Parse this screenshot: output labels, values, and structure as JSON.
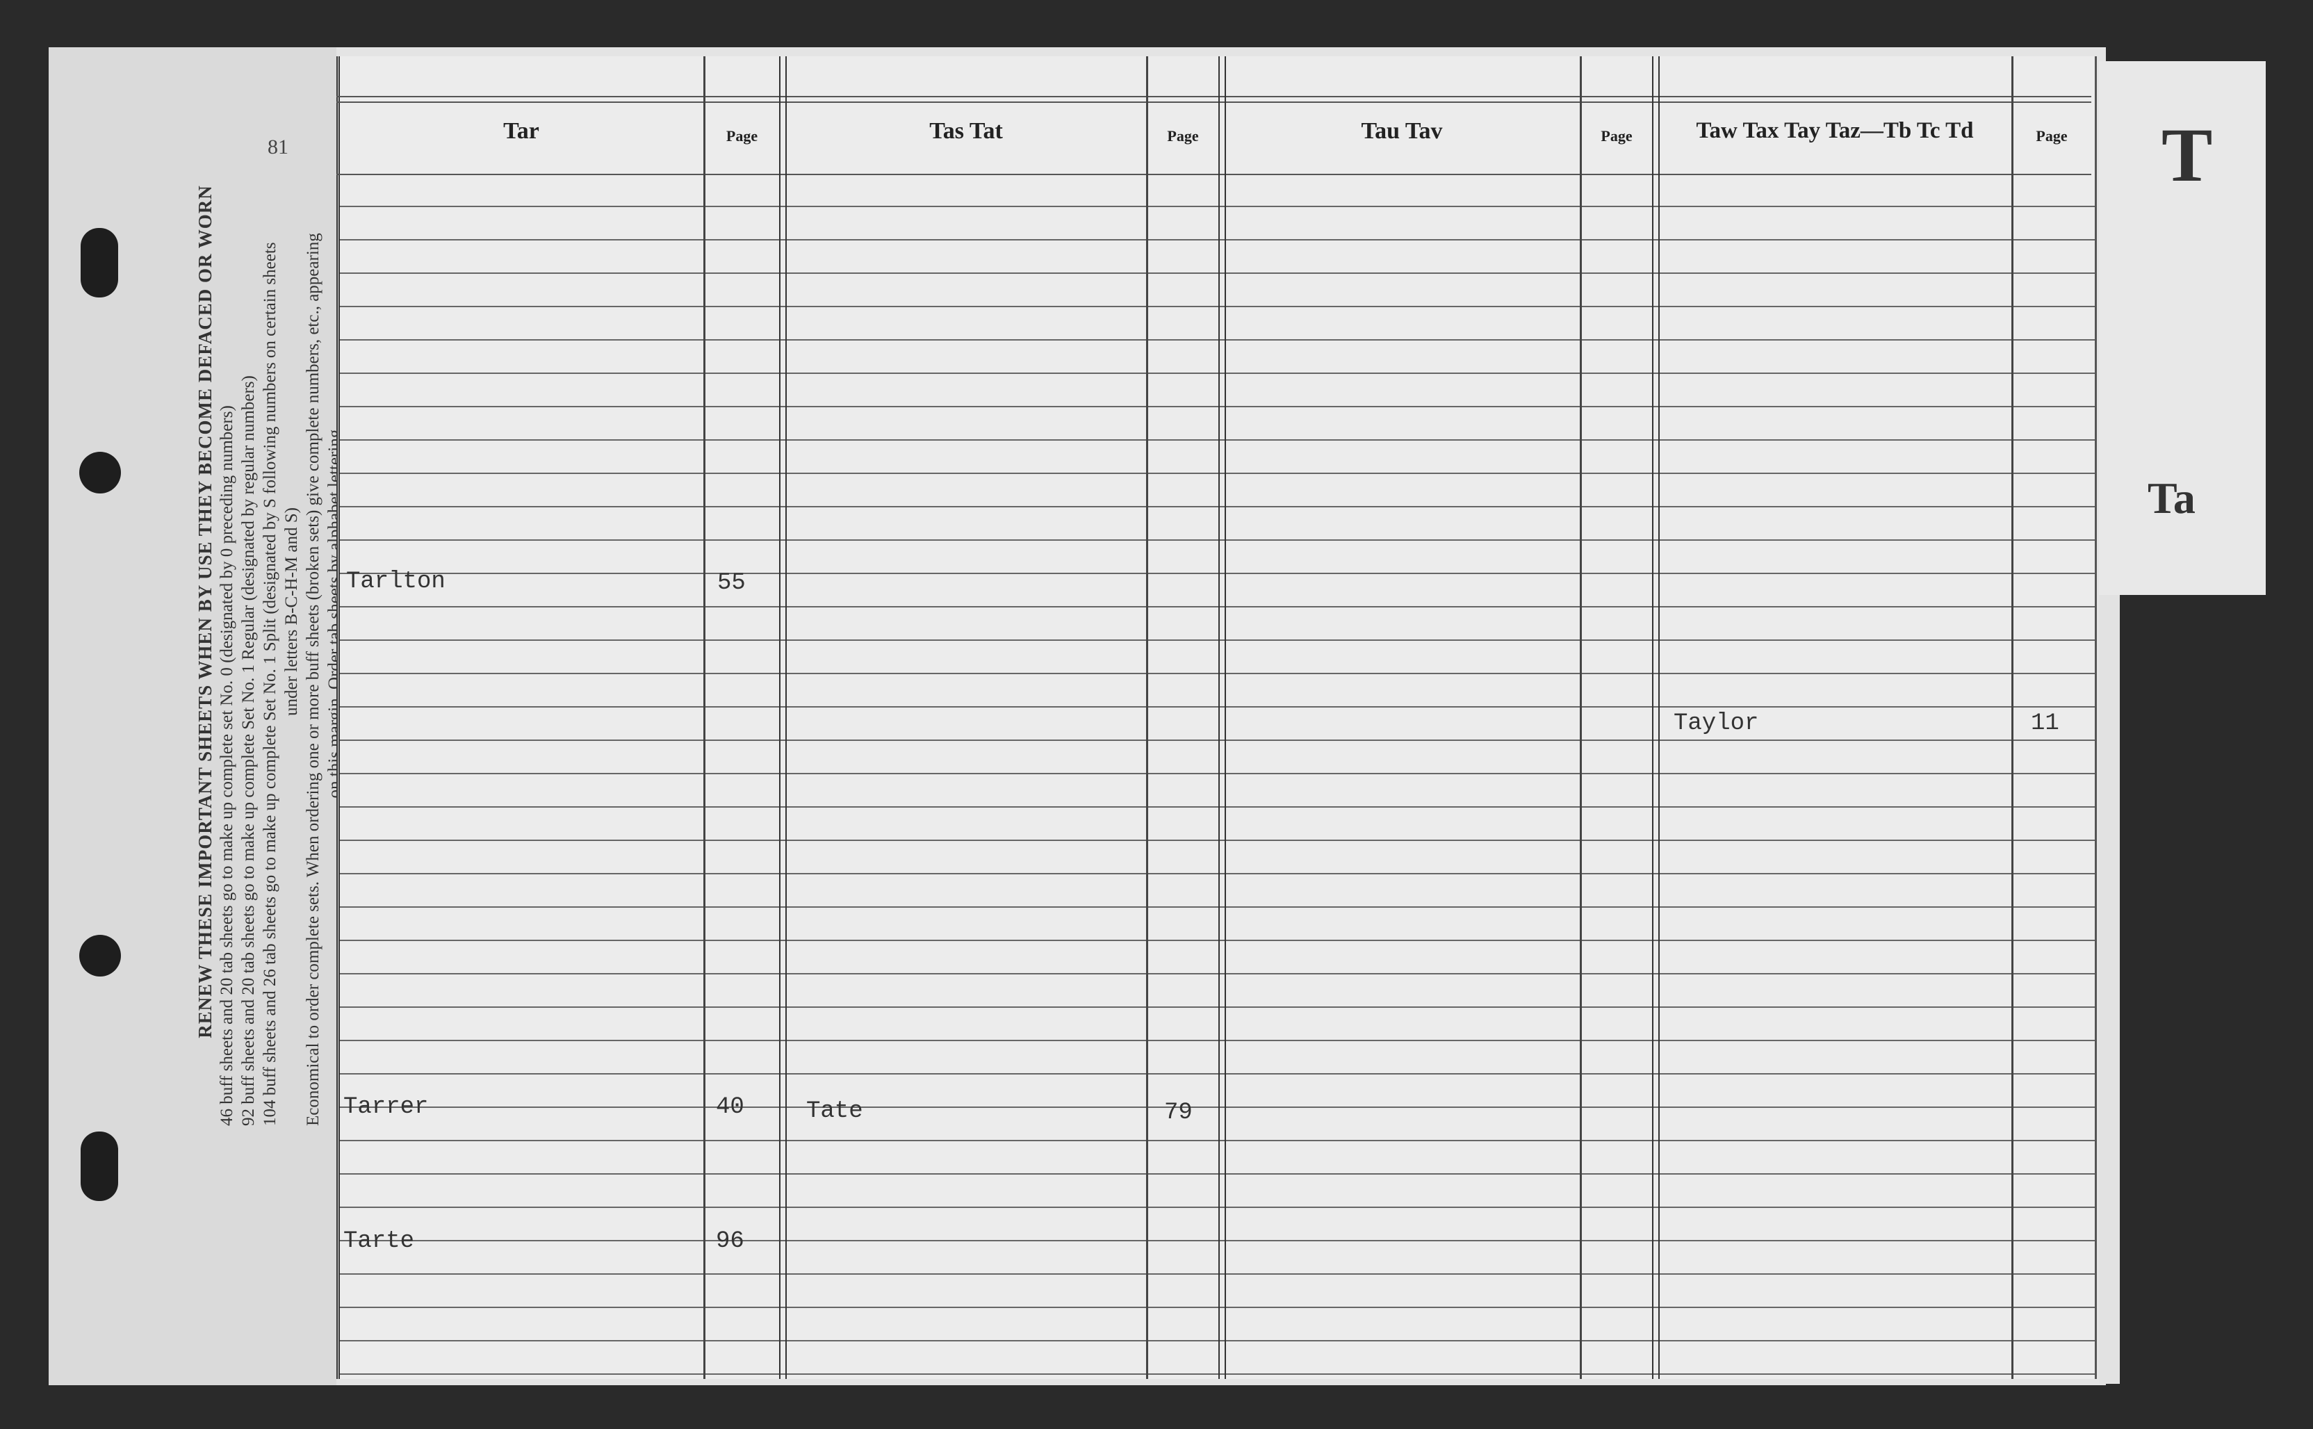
{
  "sheet_number": "81",
  "margin_notice": {
    "title": "RENEW THESE IMPORTANT SHEETS WHEN BY USE THEY BECOME DEFACED OR WORN",
    "lines": [
      "46 buff sheets and 20 tab sheets go to make up complete set No. 0 (designated by 0 preceding numbers)",
      "92 buff sheets and 20 tab sheets go to make up complete Set No. 1 Regular (designated by regular numbers)",
      "104 buff sheets and 26 tab sheets go to make up complete Set No. 1 Split (designated by S following numbers on certain sheets",
      "under letters B-C-H-M and S)",
      "Economical to order complete sets. When ordering one or more buff sheets (broken sets) give complete numbers, etc., appearing",
      "on this margin. Order tab sheets by alphabet lettering."
    ]
  },
  "columns": [
    {
      "header": "Tar",
      "page_label": "Page"
    },
    {
      "header": "Tas Tat",
      "page_label": "Page"
    },
    {
      "header": "Tau Tav",
      "page_label": "Page"
    },
    {
      "header": "Taw Tax Tay Taz—Tb Tc Td",
      "page_label": "Page"
    }
  ],
  "entries": [
    {
      "name": "Tarlton",
      "page": "55"
    },
    {
      "name": "Taylor",
      "page": "11"
    },
    {
      "name": "Tarrer",
      "page": "40"
    },
    {
      "name": "Tate",
      "page": "79"
    },
    {
      "name": "Tarte",
      "page": "96"
    }
  ],
  "tab": {
    "letter": "T",
    "sub": "Ta"
  }
}
